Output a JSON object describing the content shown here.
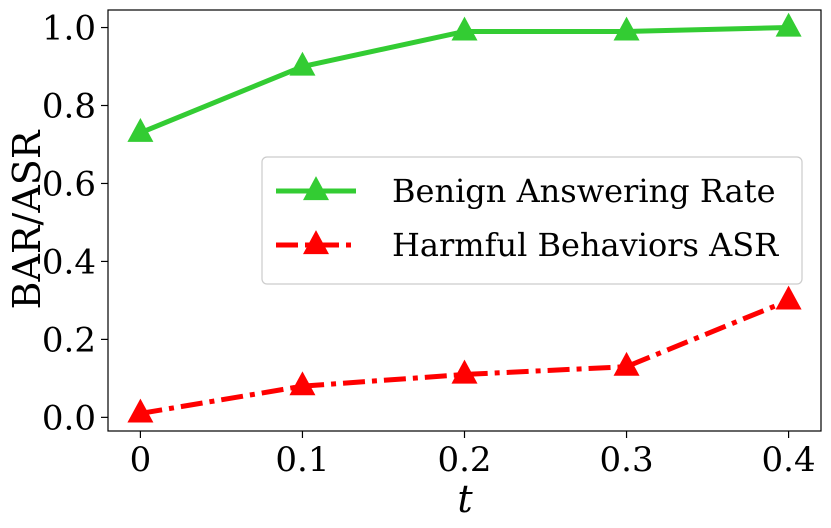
{
  "chart_data": {
    "type": "line",
    "x": [
      0,
      0.1,
      0.2,
      0.3,
      0.4
    ],
    "x_tick_labels": [
      "0",
      "0.1",
      "0.2",
      "0.3",
      "0.4"
    ],
    "y_ticks": [
      0.0,
      0.2,
      0.4,
      0.6,
      0.8,
      1.0
    ],
    "y_tick_labels": [
      "0.0",
      "0.2",
      "0.4",
      "0.6",
      "0.8",
      "1.0"
    ],
    "xlabel": "t",
    "ylabel": "BAR/ASR",
    "xlim": [
      -0.02,
      0.42
    ],
    "ylim": [
      -0.035,
      1.045
    ],
    "grid": false,
    "legend_position": "center-right",
    "series": [
      {
        "name": "Benign Answering Rate",
        "values": [
          0.73,
          0.9,
          0.99,
          0.99,
          1.0
        ],
        "color": "#33cc33",
        "line_style": "solid",
        "marker": "triangle-up"
      },
      {
        "name": "Harmful Behaviors ASR",
        "values": [
          0.01,
          0.08,
          0.11,
          0.13,
          0.3
        ],
        "color": "#ff0000",
        "line_style": "dash-dot",
        "marker": "triangle-up"
      }
    ]
  }
}
